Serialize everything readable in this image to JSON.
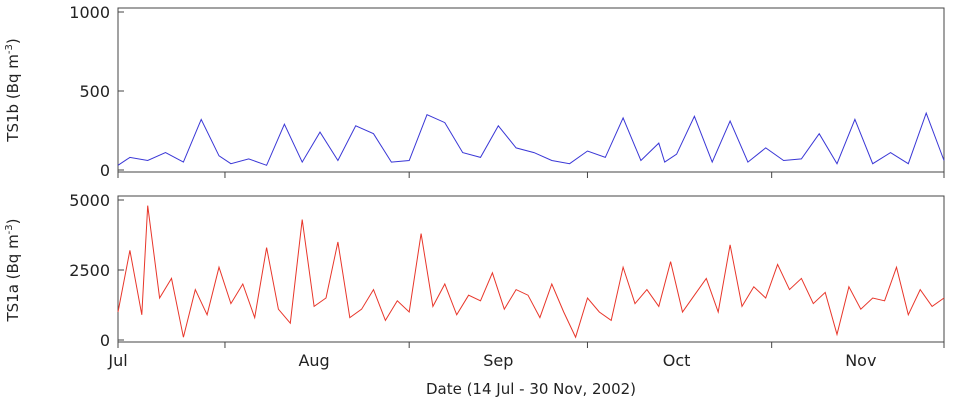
{
  "colors": {
    "ts1b": "#3a37d6",
    "ts1a": "#e8362a",
    "axis": "#444444"
  },
  "chart_data": {
    "type": "line",
    "xlabel": "Date (14 Jul - 30 Nov, 2002)",
    "x_range": [
      "2002-07-14",
      "2002-11-30"
    ],
    "x_tick_labels": [
      "Jul",
      "Aug",
      "Sep",
      "Oct",
      "Nov"
    ],
    "x_tick_dates": [
      "2002-07-14",
      "2002-08-01",
      "2002-09-01",
      "2002-10-01",
      "2002-11-01",
      "2002-11-30"
    ],
    "x_label_dates": [
      "2002-07-14",
      "2002-08-16",
      "2002-09-16",
      "2002-10-16",
      "2002-11-16"
    ],
    "panels": [
      {
        "name": "TS1b",
        "ylabel_main": "TS1b (Bq m",
        "ylabel_sup": "-3",
        "ylabel_end": ")",
        "ylim": [
          0,
          1000
        ],
        "yticks": [
          0,
          500,
          1000
        ],
        "series": [
          {
            "color_key": "ts1b",
            "x": [
              "2002-07-14",
              "2002-07-16",
              "2002-07-19",
              "2002-07-22",
              "2002-07-25",
              "2002-07-28",
              "2002-07-31",
              "2002-08-02",
              "2002-08-05",
              "2002-08-08",
              "2002-08-11",
              "2002-08-14",
              "2002-08-17",
              "2002-08-20",
              "2002-08-23",
              "2002-08-26",
              "2002-08-29",
              "2002-09-01",
              "2002-09-04",
              "2002-09-07",
              "2002-09-10",
              "2002-09-13",
              "2002-09-16",
              "2002-09-19",
              "2002-09-22",
              "2002-09-25",
              "2002-09-28",
              "2002-10-01",
              "2002-10-04",
              "2002-10-07",
              "2002-10-10",
              "2002-10-13",
              "2002-10-14",
              "2002-10-16",
              "2002-10-19",
              "2002-10-22",
              "2002-10-25",
              "2002-10-28",
              "2002-10-31",
              "2002-11-03",
              "2002-11-06",
              "2002-11-09",
              "2002-11-12",
              "2002-11-15",
              "2002-11-18",
              "2002-11-21",
              "2002-11-24",
              "2002-11-27",
              "2002-11-30"
            ],
            "y": [
              30,
              80,
              60,
              110,
              50,
              320,
              90,
              40,
              70,
              30,
              290,
              50,
              240,
              60,
              280,
              230,
              50,
              60,
              350,
              300,
              110,
              80,
              280,
              140,
              110,
              60,
              40,
              120,
              80,
              330,
              60,
              170,
              50,
              100,
              340,
              50,
              310,
              50,
              140,
              60,
              70,
              230,
              40,
              320,
              40,
              110,
              40,
              360,
              60
            ]
          }
        ]
      },
      {
        "name": "TS1a",
        "ylabel_main": "TS1a (Bq m",
        "ylabel_sup": "-3",
        "ylabel_end": ")",
        "ylim": [
          0,
          5000
        ],
        "yticks": [
          0,
          2500,
          5000
        ],
        "series": [
          {
            "color_key": "ts1a",
            "x": [
              "2002-07-14",
              "2002-07-16",
              "2002-07-18",
              "2002-07-19",
              "2002-07-21",
              "2002-07-23",
              "2002-07-25",
              "2002-07-27",
              "2002-07-29",
              "2002-07-31",
              "2002-08-02",
              "2002-08-04",
              "2002-08-06",
              "2002-08-08",
              "2002-08-10",
              "2002-08-12",
              "2002-08-14",
              "2002-08-16",
              "2002-08-18",
              "2002-08-20",
              "2002-08-22",
              "2002-08-24",
              "2002-08-26",
              "2002-08-28",
              "2002-08-30",
              "2002-09-01",
              "2002-09-03",
              "2002-09-05",
              "2002-09-07",
              "2002-09-09",
              "2002-09-11",
              "2002-09-13",
              "2002-09-15",
              "2002-09-17",
              "2002-09-19",
              "2002-09-21",
              "2002-09-23",
              "2002-09-25",
              "2002-09-27",
              "2002-09-29",
              "2002-10-01",
              "2002-10-03",
              "2002-10-05",
              "2002-10-07",
              "2002-10-09",
              "2002-10-11",
              "2002-10-13",
              "2002-10-15",
              "2002-10-17",
              "2002-10-19",
              "2002-10-21",
              "2002-10-23",
              "2002-10-25",
              "2002-10-27",
              "2002-10-29",
              "2002-10-31",
              "2002-11-02",
              "2002-11-04",
              "2002-11-06",
              "2002-11-08",
              "2002-11-10",
              "2002-11-12",
              "2002-11-14",
              "2002-11-16",
              "2002-11-18",
              "2002-11-20",
              "2002-11-22",
              "2002-11-24",
              "2002-11-26",
              "2002-11-28",
              "2002-11-30"
            ],
            "y": [
              1000,
              3200,
              900,
              4800,
              1500,
              2200,
              100,
              1800,
              900,
              2600,
              1300,
              2000,
              800,
              3300,
              1100,
              600,
              4300,
              1200,
              1500,
              3500,
              800,
              1100,
              1800,
              700,
              1400,
              1000,
              3800,
              1200,
              2000,
              900,
              1600,
              1400,
              2400,
              1100,
              1800,
              1600,
              800,
              2000,
              1000,
              100,
              1500,
              1000,
              700,
              2600,
              1300,
              1800,
              1200,
              2800,
              1000,
              1600,
              2200,
              1000,
              3400,
              1200,
              1900,
              1500,
              2700,
              1800,
              2200,
              1300,
              1700,
              200,
              1900,
              1100,
              1500,
              1400,
              2600,
              900,
              1800,
              1200,
              1500
            ]
          }
        ]
      }
    ]
  }
}
